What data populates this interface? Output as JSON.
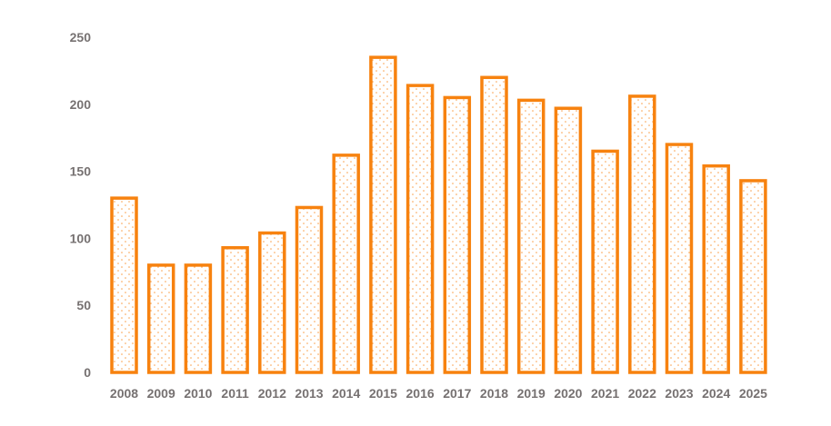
{
  "chart_data": {
    "type": "bar",
    "title": "",
    "xlabel": "",
    "ylabel": "",
    "categories": [
      "2008",
      "2009",
      "2010",
      "2011",
      "2012",
      "2013",
      "2014",
      "2015",
      "2016",
      "2017",
      "2018",
      "2019",
      "2020",
      "2021",
      "2022",
      "2023",
      "2024",
      "2025"
    ],
    "values": [
      130,
      80,
      80,
      93,
      104,
      123,
      162,
      235,
      214,
      205,
      220,
      203,
      197,
      165,
      206,
      170,
      154,
      143
    ],
    "ylim": [
      0,
      250
    ],
    "yticks": [
      "0",
      "50",
      "100",
      "150",
      "200",
      "250"
    ],
    "grid": false,
    "legend": "none",
    "colors": {
      "bar_outline": "#F7820F",
      "bar_pattern": "#F9A04A",
      "tick_text": "#767171"
    },
    "bar_fill": "dotted pattern"
  }
}
